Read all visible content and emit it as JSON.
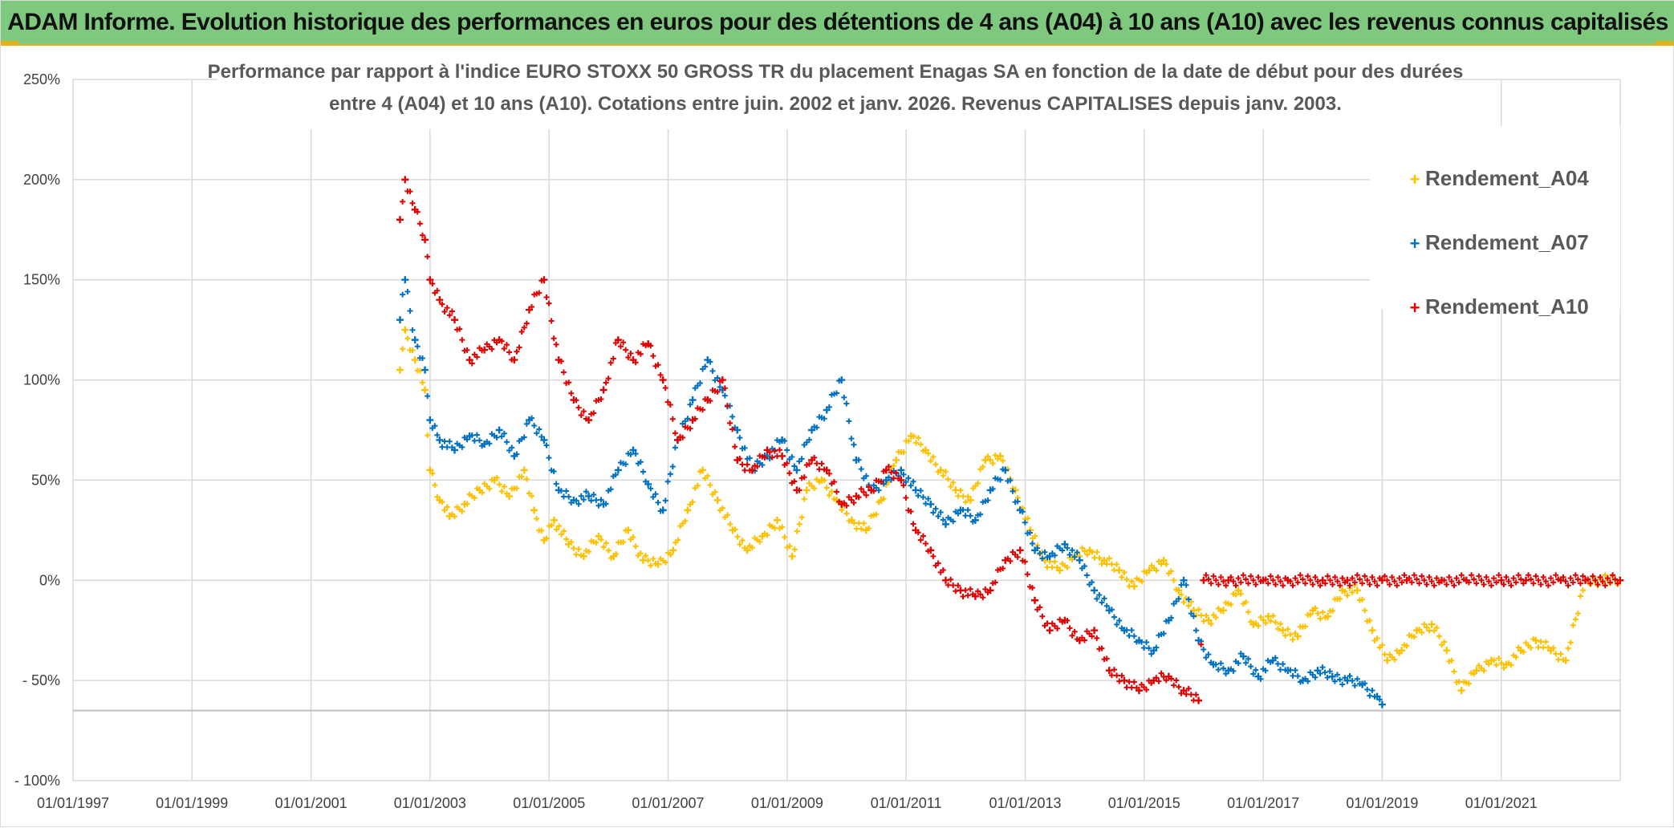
{
  "banner": {
    "title": "ADAM Informe. Evolution historique des performances en euros pour des détentions de 4 ans (A04) à 10 ans (A10) avec les revenus connus capitalisés"
  },
  "colors": {
    "banner_bg": "#7fc97f",
    "banner_border": "#e3b21b",
    "A04": "#ffc000",
    "A07": "#0070c0",
    "A10": "#e00000",
    "grid": "#d9d9d9"
  },
  "chart_data": {
    "type": "scatter",
    "title_lines": [
      "Performance  par rapport à l'indice EURO STOXX 50 GROSS TR  du placement Enagas SA en fonction de la date de début pour des durées",
      "entre 4 (A04) et 10 ans (A10). Cotations entre juin. 2002 et janv. 2026. Revenus CAPITALISES depuis janv. 2003."
    ],
    "xlabel": "",
    "ylabel": "",
    "x_ticks": [
      "01/01/1997",
      "01/01/1999",
      "01/01/2001",
      "01/01/2003",
      "01/01/2005",
      "01/01/2007",
      "01/01/2009",
      "01/01/2011",
      "01/01/2013",
      "01/01/2015",
      "01/01/2017",
      "01/01/2019",
      "01/01/2021"
    ],
    "y_ticks": [
      "250%",
      "200%",
      "150%",
      "100%",
      "50%",
      "0%",
      "- 50%",
      "- 100%"
    ],
    "ylim": [
      -100,
      250
    ],
    "xlim": [
      "1997-01-01",
      "2023-01-01"
    ],
    "grid": true,
    "legend_position": "top-right",
    "series": [
      {
        "name": "Rendement_A04",
        "color": "#ffc000",
        "points": [
          [
            "2002-07-01",
            105
          ],
          [
            "2002-08-01",
            125
          ],
          [
            "2002-10-01",
            110
          ],
          [
            "2002-12-01",
            95
          ],
          [
            "2003-01-01",
            55
          ],
          [
            "2003-03-01",
            40
          ],
          [
            "2003-05-01",
            32
          ],
          [
            "2003-08-01",
            38
          ],
          [
            "2003-11-01",
            45
          ],
          [
            "2004-02-01",
            50
          ],
          [
            "2004-05-01",
            42
          ],
          [
            "2004-08-01",
            55
          ],
          [
            "2004-10-01",
            35
          ],
          [
            "2004-12-01",
            20
          ],
          [
            "2005-02-01",
            30
          ],
          [
            "2005-05-01",
            18
          ],
          [
            "2005-08-01",
            12
          ],
          [
            "2005-11-01",
            22
          ],
          [
            "2006-02-01",
            12
          ],
          [
            "2006-05-01",
            25
          ],
          [
            "2006-08-01",
            10
          ],
          [
            "2006-11-01",
            8
          ],
          [
            "2007-02-01",
            15
          ],
          [
            "2007-05-01",
            35
          ],
          [
            "2007-08-01",
            55
          ],
          [
            "2007-11-01",
            40
          ],
          [
            "2008-02-01",
            25
          ],
          [
            "2008-05-01",
            15
          ],
          [
            "2008-08-01",
            22
          ],
          [
            "2008-11-01",
            30
          ],
          [
            "2009-02-01",
            12
          ],
          [
            "2009-05-01",
            45
          ],
          [
            "2009-08-01",
            50
          ],
          [
            "2009-11-01",
            40
          ],
          [
            "2010-02-01",
            30
          ],
          [
            "2010-05-01",
            25
          ],
          [
            "2010-08-01",
            40
          ],
          [
            "2010-11-01",
            60
          ],
          [
            "2011-02-01",
            72
          ],
          [
            "2011-05-01",
            65
          ],
          [
            "2011-08-01",
            55
          ],
          [
            "2011-11-01",
            45
          ],
          [
            "2012-02-01",
            40
          ],
          [
            "2012-05-01",
            60
          ],
          [
            "2012-08-01",
            62
          ],
          [
            "2012-11-01",
            45
          ],
          [
            "2013-02-01",
            25
          ],
          [
            "2013-05-01",
            10
          ],
          [
            "2013-08-01",
            5
          ],
          [
            "2013-11-01",
            12
          ],
          [
            "2014-02-01",
            15
          ],
          [
            "2014-05-01",
            10
          ],
          [
            "2014-08-01",
            5
          ],
          [
            "2014-11-01",
            -3
          ],
          [
            "2015-02-01",
            5
          ],
          [
            "2015-05-01",
            10
          ],
          [
            "2015-08-01",
            -5
          ],
          [
            "2015-11-01",
            -15
          ],
          [
            "2016-02-01",
            -20
          ],
          [
            "2016-05-01",
            -15
          ],
          [
            "2016-08-01",
            -5
          ],
          [
            "2016-11-01",
            -22
          ],
          [
            "2017-02-01",
            -18
          ],
          [
            "2017-05-01",
            -25
          ],
          [
            "2017-08-01",
            -28
          ],
          [
            "2017-11-01",
            -15
          ],
          [
            "2018-02-01",
            -18
          ],
          [
            "2018-05-01",
            -5
          ],
          [
            "2018-08-01",
            -5
          ],
          [
            "2018-11-01",
            -25
          ],
          [
            "2019-02-01",
            -40
          ],
          [
            "2019-05-01",
            -35
          ],
          [
            "2019-08-01",
            -25
          ],
          [
            "2019-11-01",
            -22
          ],
          [
            "2020-02-01",
            -35
          ],
          [
            "2020-05-01",
            -55
          ],
          [
            "2020-08-01",
            -45
          ],
          [
            "2020-11-01",
            -40
          ],
          [
            "2021-02-01",
            -42
          ],
          [
            "2021-05-01",
            -35
          ],
          [
            "2021-08-01",
            -30
          ],
          [
            "2021-11-01",
            -35
          ],
          [
            "2022-02-01",
            -40
          ],
          [
            "2022-06-01",
            0
          ],
          [
            "2022-12-31",
            0
          ]
        ]
      },
      {
        "name": "Rendement_A07",
        "color": "#0070c0",
        "points": [
          [
            "2002-07-01",
            130
          ],
          [
            "2002-08-01",
            150
          ],
          [
            "2002-10-01",
            120
          ],
          [
            "2002-12-01",
            105
          ],
          [
            "2003-01-01",
            80
          ],
          [
            "2003-03-01",
            70
          ],
          [
            "2003-06-01",
            65
          ],
          [
            "2003-09-01",
            72
          ],
          [
            "2003-12-01",
            68
          ],
          [
            "2004-03-01",
            75
          ],
          [
            "2004-06-01",
            62
          ],
          [
            "2004-09-01",
            80
          ],
          [
            "2004-12-01",
            70
          ],
          [
            "2005-03-01",
            45
          ],
          [
            "2005-06-01",
            40
          ],
          [
            "2005-09-01",
            42
          ],
          [
            "2005-12-01",
            38
          ],
          [
            "2006-03-01",
            55
          ],
          [
            "2006-06-01",
            65
          ],
          [
            "2006-09-01",
            48
          ],
          [
            "2006-12-01",
            35
          ],
          [
            "2007-03-01",
            70
          ],
          [
            "2007-06-01",
            90
          ],
          [
            "2007-09-01",
            110
          ],
          [
            "2007-12-01",
            95
          ],
          [
            "2008-03-01",
            75
          ],
          [
            "2008-06-01",
            55
          ],
          [
            "2008-09-01",
            62
          ],
          [
            "2008-12-01",
            70
          ],
          [
            "2009-03-01",
            55
          ],
          [
            "2009-06-01",
            75
          ],
          [
            "2009-09-01",
            85
          ],
          [
            "2009-12-01",
            100
          ],
          [
            "2010-03-01",
            60
          ],
          [
            "2010-06-01",
            45
          ],
          [
            "2010-09-01",
            50
          ],
          [
            "2010-12-01",
            55
          ],
          [
            "2011-03-01",
            45
          ],
          [
            "2011-06-01",
            38
          ],
          [
            "2011-09-01",
            28
          ],
          [
            "2011-12-01",
            35
          ],
          [
            "2012-03-01",
            30
          ],
          [
            "2012-06-01",
            45
          ],
          [
            "2012-09-01",
            55
          ],
          [
            "2012-12-01",
            35
          ],
          [
            "2013-03-01",
            15
          ],
          [
            "2013-06-01",
            12
          ],
          [
            "2013-09-01",
            18
          ],
          [
            "2013-12-01",
            10
          ],
          [
            "2014-03-01",
            -5
          ],
          [
            "2014-06-01",
            -15
          ],
          [
            "2014-09-01",
            -25
          ],
          [
            "2014-12-01",
            -30
          ],
          [
            "2015-03-01",
            -35
          ],
          [
            "2015-06-01",
            -20
          ],
          [
            "2015-09-01",
            0
          ],
          [
            "2015-12-01",
            -30
          ],
          [
            "2016-03-01",
            -42
          ],
          [
            "2016-06-01",
            -45
          ],
          [
            "2016-09-01",
            -38
          ],
          [
            "2016-12-01",
            -48
          ],
          [
            "2017-03-01",
            -40
          ],
          [
            "2017-06-01",
            -45
          ],
          [
            "2017-09-01",
            -50
          ],
          [
            "2017-12-01",
            -45
          ],
          [
            "2018-03-01",
            -48
          ],
          [
            "2018-06-01",
            -50
          ],
          [
            "2018-09-01",
            -52
          ],
          [
            "2018-12-01",
            -58
          ],
          [
            "2019-01-01",
            -62
          ]
        ]
      },
      {
        "name": "Rendement_A10",
        "color": "#e00000",
        "points": [
          [
            "2002-07-01",
            180
          ],
          [
            "2002-08-01",
            200
          ],
          [
            "2002-10-01",
            185
          ],
          [
            "2002-12-01",
            170
          ],
          [
            "2003-01-01",
            150
          ],
          [
            "2003-03-01",
            140
          ],
          [
            "2003-06-01",
            130
          ],
          [
            "2003-09-01",
            110
          ],
          [
            "2003-12-01",
            115
          ],
          [
            "2004-03-01",
            120
          ],
          [
            "2004-06-01",
            110
          ],
          [
            "2004-09-01",
            135
          ],
          [
            "2004-12-01",
            150
          ],
          [
            "2005-03-01",
            110
          ],
          [
            "2005-06-01",
            90
          ],
          [
            "2005-09-01",
            80
          ],
          [
            "2005-12-01",
            95
          ],
          [
            "2006-03-01",
            120
          ],
          [
            "2006-06-01",
            110
          ],
          [
            "2006-09-01",
            118
          ],
          [
            "2006-12-01",
            100
          ],
          [
            "2007-03-01",
            70
          ],
          [
            "2007-06-01",
            80
          ],
          [
            "2007-09-01",
            90
          ],
          [
            "2007-12-01",
            100
          ],
          [
            "2008-03-01",
            60
          ],
          [
            "2008-06-01",
            55
          ],
          [
            "2008-09-01",
            65
          ],
          [
            "2008-12-01",
            62
          ],
          [
            "2009-03-01",
            45
          ],
          [
            "2009-06-01",
            60
          ],
          [
            "2009-09-01",
            55
          ],
          [
            "2009-12-01",
            38
          ],
          [
            "2010-03-01",
            42
          ],
          [
            "2010-06-01",
            45
          ],
          [
            "2010-09-01",
            55
          ],
          [
            "2010-12-01",
            50
          ],
          [
            "2011-03-01",
            25
          ],
          [
            "2011-06-01",
            15
          ],
          [
            "2011-09-01",
            0
          ],
          [
            "2011-12-01",
            -5
          ],
          [
            "2012-03-01",
            -8
          ],
          [
            "2012-06-01",
            -5
          ],
          [
            "2012-09-01",
            10
          ],
          [
            "2012-12-01",
            15
          ],
          [
            "2013-03-01",
            -10
          ],
          [
            "2013-06-01",
            -25
          ],
          [
            "2013-09-01",
            -20
          ],
          [
            "2013-12-01",
            -30
          ],
          [
            "2014-03-01",
            -25
          ],
          [
            "2014-06-01",
            -45
          ],
          [
            "2014-09-01",
            -50
          ],
          [
            "2014-12-01",
            -55
          ],
          [
            "2015-03-01",
            -50
          ],
          [
            "2015-06-01",
            -48
          ],
          [
            "2015-09-01",
            -55
          ],
          [
            "2015-12-01",
            -60
          ],
          [
            "2016-01-01",
            0
          ],
          [
            "2016-06-01",
            0
          ],
          [
            "2017-01-01",
            0
          ],
          [
            "2017-06-01",
            0
          ],
          [
            "2018-01-01",
            0
          ],
          [
            "2018-06-01",
            0
          ],
          [
            "2019-01-01",
            0
          ],
          [
            "2019-06-01",
            0
          ],
          [
            "2020-01-01",
            0
          ],
          [
            "2020-06-01",
            0
          ],
          [
            "2021-01-01",
            0
          ],
          [
            "2021-06-01",
            0
          ],
          [
            "2022-01-01",
            0
          ],
          [
            "2022-06-01",
            0
          ],
          [
            "2022-12-31",
            0
          ]
        ]
      }
    ]
  }
}
